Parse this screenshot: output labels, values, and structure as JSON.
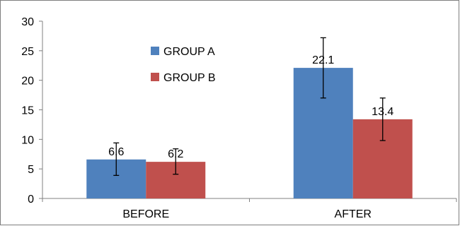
{
  "chart_data": {
    "type": "bar",
    "title": "",
    "xlabel": "",
    "ylabel": "",
    "categories": [
      "BEFORE",
      "AFTER"
    ],
    "ylim": [
      0,
      30
    ],
    "yticks": [
      0,
      5,
      10,
      15,
      20,
      25,
      30
    ],
    "grid": false,
    "legend_position": "top-left inside plot",
    "series": [
      {
        "name": "GROUP A",
        "color": "#4f81bd",
        "values": [
          6.6,
          22.1
        ],
        "error": [
          [
            3.9,
            9.4
          ],
          [
            17.0,
            27.2
          ]
        ],
        "data_labels": [
          "6.6",
          "22.1"
        ]
      },
      {
        "name": "GROUP B",
        "color": "#c0504d",
        "values": [
          6.2,
          13.4
        ],
        "error": [
          [
            4.1,
            8.4
          ],
          [
            9.8,
            17.0
          ]
        ],
        "data_labels": [
          "6.2",
          "13.4"
        ]
      }
    ]
  }
}
